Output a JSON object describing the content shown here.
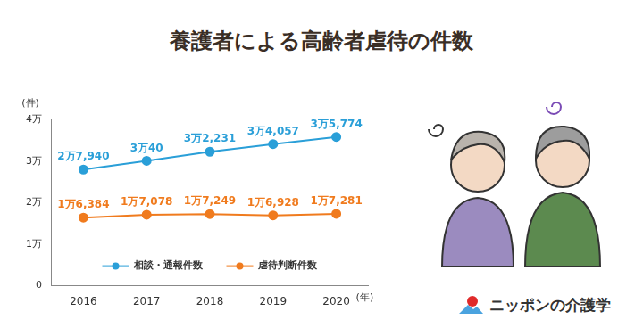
{
  "chart_data": {
    "type": "line",
    "title": "養護者による高齢者虐待の件数",
    "xlabel": "(年)",
    "ylabel": "(件)",
    "categories": [
      "2016",
      "2017",
      "2018",
      "2019",
      "2020"
    ],
    "series": [
      {
        "name": "相談・通報件数",
        "color": "#2a9fd8",
        "marker": "circle",
        "values": [
          27940,
          30040,
          32231,
          34057,
          35774
        ],
        "value_labels": [
          "2万7,940",
          "3万40",
          "3万2,231",
          "3万4,057",
          "3万5,774"
        ]
      },
      {
        "name": "虐待判断件数",
        "color": "#f07b1e",
        "marker": "circle",
        "values": [
          16384,
          17078,
          17249,
          16928,
          17281
        ],
        "value_labels": [
          "1万6,384",
          "1万7,078",
          "1万7,249",
          "1万6,928",
          "1万7,281"
        ]
      }
    ],
    "ylim": [
      0,
      40000
    ],
    "yticks": [
      0,
      {
        "value": 10000,
        "label": "1万"
      },
      {
        "value": 20000,
        "label": "2万"
      },
      {
        "value": 30000,
        "label": "3万"
      },
      {
        "value": 40000,
        "label": "4万"
      }
    ],
    "grid": false,
    "legend": "bottom",
    "data_labels": true,
    "brand": "ニッポンの介護学"
  }
}
